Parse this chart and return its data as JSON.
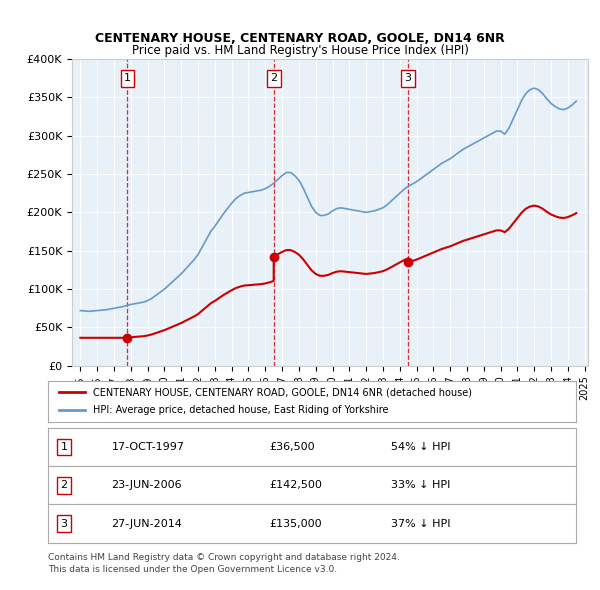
{
  "title": "CENTENARY HOUSE, CENTENARY ROAD, GOOLE, DN14 6NR",
  "subtitle": "Price paid vs. HM Land Registry's House Price Index (HPI)",
  "xlabel": "",
  "ylabel": "",
  "background_color": "#e8f0f8",
  "plot_bg_color": "#e8f0f8",
  "ylim": [
    0,
    400000
  ],
  "yticks": [
    0,
    50000,
    100000,
    150000,
    200000,
    250000,
    300000,
    350000,
    400000
  ],
  "ytick_labels": [
    "£0",
    "£50K",
    "£100K",
    "£150K",
    "£200K",
    "£250K",
    "£300K",
    "£350K",
    "£400K"
  ],
  "transactions": [
    {
      "num": 1,
      "date": "17-OCT-1997",
      "price": 36500,
      "year": 1997.8,
      "pct": "54%",
      "dir": "↓"
    },
    {
      "num": 2,
      "date": "23-JUN-2006",
      "price": 142500,
      "year": 2006.5,
      "pct": "33%",
      "dir": "↓"
    },
    {
      "num": 3,
      "date": "27-JUN-2014",
      "price": 135000,
      "year": 2014.5,
      "pct": "37%",
      "dir": "↓"
    }
  ],
  "legend_house": "CENTENARY HOUSE, CENTENARY ROAD, GOOLE, DN14 6NR (detached house)",
  "legend_hpi": "HPI: Average price, detached house, East Riding of Yorkshire",
  "footer1": "Contains HM Land Registry data © Crown copyright and database right 2024.",
  "footer2": "This data is licensed under the Open Government Licence v3.0.",
  "red_color": "#cc0000",
  "blue_color": "#6699cc",
  "hpi_data": {
    "years": [
      1995.0,
      1995.25,
      1995.5,
      1995.75,
      1996.0,
      1996.25,
      1996.5,
      1996.75,
      1997.0,
      1997.25,
      1997.5,
      1997.75,
      1998.0,
      1998.25,
      1998.5,
      1998.75,
      1999.0,
      1999.25,
      1999.5,
      1999.75,
      2000.0,
      2000.25,
      2000.5,
      2000.75,
      2001.0,
      2001.25,
      2001.5,
      2001.75,
      2002.0,
      2002.25,
      2002.5,
      2002.75,
      2003.0,
      2003.25,
      2003.5,
      2003.75,
      2004.0,
      2004.25,
      2004.5,
      2004.75,
      2005.0,
      2005.25,
      2005.5,
      2005.75,
      2006.0,
      2006.25,
      2006.5,
      2006.75,
      2007.0,
      2007.25,
      2007.5,
      2007.75,
      2008.0,
      2008.25,
      2008.5,
      2008.75,
      2009.0,
      2009.25,
      2009.5,
      2009.75,
      2010.0,
      2010.25,
      2010.5,
      2010.75,
      2011.0,
      2011.25,
      2011.5,
      2011.75,
      2012.0,
      2012.25,
      2012.5,
      2012.75,
      2013.0,
      2013.25,
      2013.5,
      2013.75,
      2014.0,
      2014.25,
      2014.5,
      2014.75,
      2015.0,
      2015.25,
      2015.5,
      2015.75,
      2016.0,
      2016.25,
      2016.5,
      2016.75,
      2017.0,
      2017.25,
      2017.5,
      2017.75,
      2018.0,
      2018.25,
      2018.5,
      2018.75,
      2019.0,
      2019.25,
      2019.5,
      2019.75,
      2020.0,
      2020.25,
      2020.5,
      2020.75,
      2021.0,
      2021.25,
      2021.5,
      2021.75,
      2022.0,
      2022.25,
      2022.5,
      2022.75,
      2023.0,
      2023.25,
      2023.5,
      2023.75,
      2024.0,
      2024.25,
      2024.5
    ],
    "values": [
      72000,
      71500,
      71000,
      71500,
      72000,
      72500,
      73000,
      74000,
      75000,
      76000,
      77000,
      78500,
      80000,
      81000,
      82000,
      83000,
      85000,
      88000,
      92000,
      96000,
      100000,
      105000,
      110000,
      115000,
      120000,
      126000,
      132000,
      138000,
      145000,
      155000,
      165000,
      175000,
      182000,
      190000,
      198000,
      205000,
      212000,
      218000,
      222000,
      225000,
      226000,
      227000,
      228000,
      229000,
      231000,
      234000,
      238000,
      243000,
      248000,
      252000,
      252000,
      248000,
      242000,
      232000,
      220000,
      208000,
      200000,
      196000,
      196000,
      198000,
      202000,
      205000,
      206000,
      205000,
      204000,
      203000,
      202000,
      201000,
      200000,
      201000,
      202000,
      204000,
      206000,
      210000,
      215000,
      220000,
      225000,
      230000,
      234000,
      237000,
      240000,
      244000,
      248000,
      252000,
      256000,
      260000,
      264000,
      267000,
      270000,
      274000,
      278000,
      282000,
      285000,
      288000,
      291000,
      294000,
      297000,
      300000,
      303000,
      306000,
      306000,
      302000,
      310000,
      322000,
      334000,
      346000,
      355000,
      360000,
      362000,
      360000,
      355000,
      348000,
      342000,
      338000,
      335000,
      334000,
      336000,
      340000,
      345000
    ]
  },
  "house_data": {
    "years": [
      1995.0,
      1997.8,
      2006.5,
      2014.5,
      2024.5
    ],
    "values": [
      36500,
      36500,
      142500,
      135000,
      200000
    ]
  }
}
